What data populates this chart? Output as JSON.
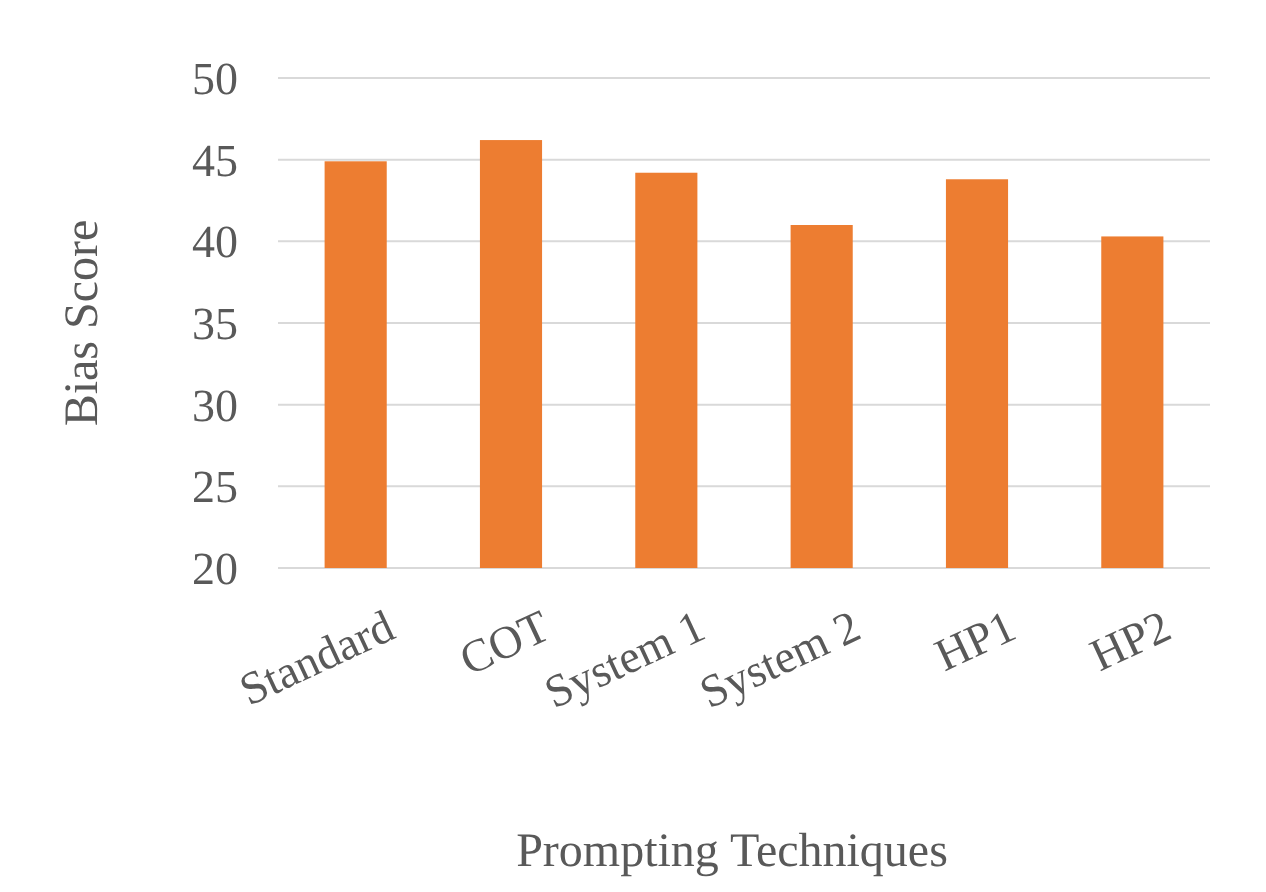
{
  "chart_data": {
    "type": "bar",
    "xlabel": "Prompting Techniques",
    "ylabel": "Bias Score",
    "categories": [
      "Standard",
      "COT",
      "System 1",
      "System 2",
      "HP1",
      "HP2"
    ],
    "values": [
      44.9,
      46.2,
      44.2,
      41.0,
      43.8,
      40.3
    ],
    "color": "#ed7d31",
    "ylim": [
      20,
      50
    ],
    "yticks": [
      20,
      25,
      30,
      35,
      40,
      45,
      50
    ],
    "grid": "y"
  }
}
